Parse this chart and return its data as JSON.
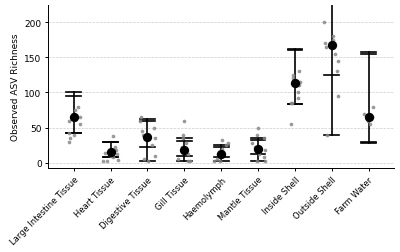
{
  "categories": [
    "Large Intestine\nTissue",
    "Heart Tissue",
    "Digestive Tissue",
    "Gill Tissue",
    "Haemolymph",
    "Mantle Tissue",
    "Inside Shell",
    "Outside Shell",
    "Farm Water"
  ],
  "categories_xlabels": [
    "Large Intestine Tissue",
    "Heart Tissue",
    "Digestive Tissue",
    "Gill Tissue",
    "Haemolymph",
    "Mantle Tissue",
    "Inside Shell",
    "Outside Shell",
    "Farm Water"
  ],
  "medians": [
    65,
    15,
    37,
    18,
    12,
    20,
    113,
    168,
    65
  ],
  "q1": [
    43,
    8,
    22,
    10,
    8,
    13,
    83,
    125,
    30
  ],
  "q3": [
    95,
    29,
    60,
    31,
    22,
    32,
    160,
    230,
    155
  ],
  "whisker_low": [
    43,
    8,
    2,
    2,
    2,
    2,
    83,
    40,
    28
  ],
  "whisker_high": [
    100,
    30,
    62,
    35,
    25,
    35,
    162,
    235,
    157
  ],
  "jitter_data": [
    [
      43,
      55,
      60,
      65,
      70,
      75,
      80,
      40,
      35,
      30
    ],
    [
      8,
      10,
      12,
      14,
      18,
      22,
      38,
      4,
      2,
      2
    ],
    [
      5,
      10,
      25,
      35,
      40,
      45,
      50,
      60,
      65,
      2
    ],
    [
      2,
      5,
      12,
      18,
      22,
      28,
      35,
      40,
      60,
      2
    ],
    [
      2,
      5,
      8,
      12,
      15,
      20,
      25,
      28,
      32,
      2
    ],
    [
      2,
      8,
      12,
      18,
      22,
      28,
      35,
      40,
      50,
      2
    ],
    [
      85,
      92,
      100,
      110,
      115,
      120,
      125,
      130,
      55,
      85
    ],
    [
      40,
      95,
      130,
      145,
      155,
      165,
      170,
      175,
      180,
      200
    ],
    [
      55,
      60,
      65,
      70,
      80
    ]
  ],
  "background_color": "#ffffff",
  "grid_color": "#cccccc",
  "point_color": "#888888",
  "median_color": "#000000",
  "line_color": "#000000",
  "ylabel": "Observed ASV Richness",
  "ylim": [
    -8,
    225
  ],
  "yticks": [
    0,
    50,
    100,
    150,
    200
  ],
  "figure_width": 4.0,
  "figure_height": 2.53,
  "dpi": 100
}
